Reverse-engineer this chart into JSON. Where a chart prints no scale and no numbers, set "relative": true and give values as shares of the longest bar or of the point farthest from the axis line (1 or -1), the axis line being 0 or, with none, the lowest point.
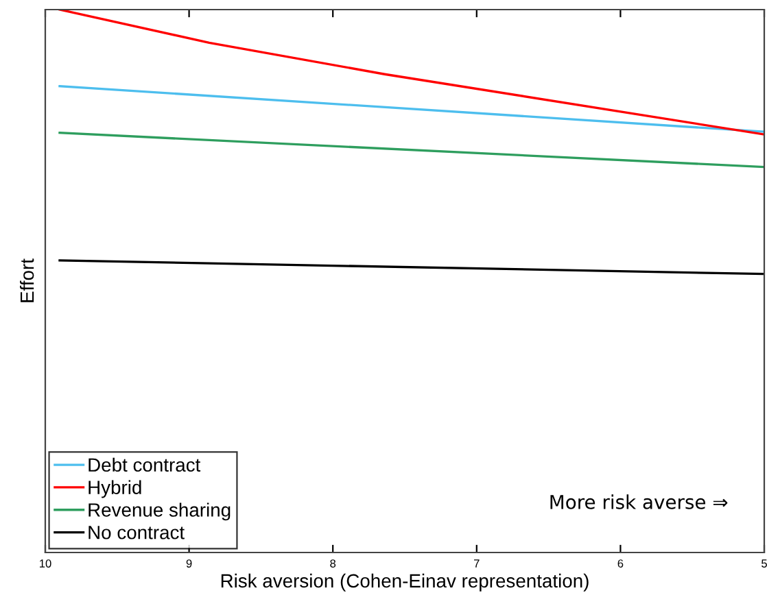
{
  "chart_data": {
    "type": "line",
    "relative": true,
    "xlabel": "Risk aversion (Cohen-Einav representation)",
    "ylabel": "Effort",
    "xlim": [
      10,
      5
    ],
    "xticks": [
      10,
      9,
      8,
      7,
      6,
      5
    ],
    "legend": "bottom left",
    "grid": false,
    "marker": "none",
    "line_style": "solid",
    "annotations": [
      "More risk averse ⇒"
    ],
    "series": [
      {
        "name": "Debt contract",
        "color": "#4dbeee",
        "x": [
          9.9,
          5
        ],
        "values": [
          0.859,
          0.775
        ]
      },
      {
        "name": "Hybrid",
        "color": "#ff0000",
        "x": [
          9.9,
          8.86,
          7.64,
          5
        ],
        "values": [
          1.0,
          0.939,
          0.881,
          0.77
        ]
      },
      {
        "name": "Revenue sharing",
        "color": "#2e9e5e",
        "x": [
          9.9,
          5
        ],
        "values": [
          0.773,
          0.71
        ]
      },
      {
        "name": "No contract",
        "color": "#000000",
        "x": [
          9.9,
          5
        ],
        "values": [
          0.538,
          0.513
        ]
      }
    ]
  }
}
